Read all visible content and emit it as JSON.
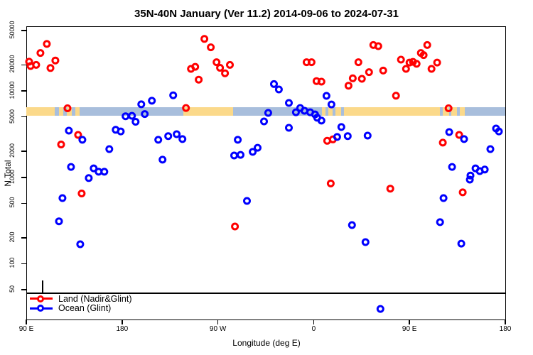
{
  "title": "35N-40N January (Ver 11.2)  2014-09-06 to 2024-07-31",
  "colors": {
    "land": "#FF0000",
    "ocean": "#0000FF",
    "band_land": "#FBD98A",
    "band_ocean": "#A8BEDC",
    "axis": "#000000",
    "background": "#FFFFFF"
  },
  "chart_data": {
    "type": "scatter",
    "title": "35N-40N January (Ver 11.2)  2014-09-06 to 2024-07-31",
    "xlabel": "Longitude (deg E)",
    "ylabel": "N Total",
    "x_axis": {
      "range": [
        90,
        540
      ],
      "ticks": [
        90,
        180,
        270,
        360,
        450,
        540
      ],
      "tick_labels": [
        "90 E",
        "180",
        "90 W",
        "0",
        "90 E",
        "180"
      ],
      "note": "longitude axis starts at 90E and wraps eastward through 180, 90W, 0, 90E to 180"
    },
    "y_axis": {
      "scale": "log10",
      "ticks": [
        50,
        100,
        200,
        500,
        1000,
        2000,
        5000,
        10000,
        20000,
        50000
      ],
      "tick_labels": [
        "50",
        "100",
        "200",
        "500",
        "1000",
        "2000",
        "5000",
        "10000",
        "20000",
        "50000"
      ],
      "top_value": 50000
    },
    "legend": {
      "position": "bottom-left",
      "items": [
        {
          "label": "Land (Nadir&Glint)",
          "color": "#FF0000"
        },
        {
          "label": "Ocean (Glint)",
          "color": "#0000FF"
        }
      ]
    },
    "map_band": {
      "description": "land/ocean strip drawn across plot near N=5500",
      "land_color": "#FBD98A",
      "ocean_color": "#A8BEDC",
      "segments": [
        [
          90,
          117,
          "land"
        ],
        [
          117,
          120.5,
          "ocean"
        ],
        [
          120.5,
          125,
          "land"
        ],
        [
          125,
          128,
          "ocean"
        ],
        [
          128,
          133,
          "land"
        ],
        [
          133,
          136,
          "ocean"
        ],
        [
          136,
          140,
          "land"
        ],
        [
          140,
          237.5,
          "ocean"
        ],
        [
          237.5,
          284,
          "land"
        ],
        [
          284,
          368,
          "ocean"
        ],
        [
          368,
          371,
          "land"
        ],
        [
          371,
          374,
          "ocean"
        ],
        [
          374,
          378,
          "land"
        ],
        [
          378,
          380.5,
          "ocean"
        ],
        [
          380.5,
          386,
          "land"
        ],
        [
          386,
          388.5,
          "ocean"
        ],
        [
          388.5,
          478.5,
          "land"
        ],
        [
          478.5,
          481.5,
          "ocean"
        ],
        [
          481.5,
          487,
          "land"
        ],
        [
          487,
          489.5,
          "ocean"
        ],
        [
          489.5,
          494.5,
          "land"
        ],
        [
          494.5,
          497.5,
          "ocean"
        ],
        [
          497.5,
          502,
          "land"
        ],
        [
          502,
          540,
          "ocean"
        ]
      ]
    },
    "threshold_line_value": 45,
    "series": [
      {
        "name": "Land (Nadir&Glint)",
        "color": "#FF0000",
        "points": [
          [
            109.3,
            35000
          ],
          [
            103.3,
            27500
          ],
          [
            92.7,
            21800
          ],
          [
            99.3,
            20000
          ],
          [
            94,
            19400
          ],
          [
            117.3,
            22500
          ],
          [
            112.7,
            18400
          ],
          [
            128.7,
            6300
          ],
          [
            138.7,
            3100
          ],
          [
            122.7,
            2400
          ],
          [
            142,
            650
          ],
          [
            257.3,
            40000
          ],
          [
            263.3,
            32000
          ],
          [
            268.7,
            21500
          ],
          [
            272,
            18500
          ],
          [
            281.3,
            20000
          ],
          [
            276.7,
            16000
          ],
          [
            244.7,
            18000
          ],
          [
            248.7,
            19000
          ],
          [
            252,
            13500
          ],
          [
            240,
            6350
          ],
          [
            286,
            270
          ],
          [
            353.3,
            21500
          ],
          [
            358,
            21500
          ],
          [
            362.7,
            13000
          ],
          [
            367.3,
            12800
          ],
          [
            392.7,
            11500
          ],
          [
            396.7,
            14000
          ],
          [
            405.3,
            13800
          ],
          [
            402,
            21500
          ],
          [
            412,
            16500
          ],
          [
            416,
            34000
          ],
          [
            420.7,
            33000
          ],
          [
            425.3,
            17200
          ],
          [
            372.7,
            2650
          ],
          [
            378,
            2750
          ],
          [
            376,
            850
          ],
          [
            466.7,
            34000
          ],
          [
            460.7,
            27500
          ],
          [
            463.3,
            26000
          ],
          [
            442,
            23000
          ],
          [
            450,
            21300
          ],
          [
            453.3,
            21700
          ],
          [
            456.7,
            20600
          ],
          [
            446.7,
            18000
          ],
          [
            470.7,
            18000
          ],
          [
            476,
            21300
          ],
          [
            437.3,
            8800
          ],
          [
            486.7,
            6300
          ],
          [
            496.7,
            3100
          ],
          [
            481.3,
            2520
          ],
          [
            432,
            740
          ],
          [
            500,
            670
          ]
        ]
      },
      {
        "name": "Ocean (Glint)",
        "color": "#0000FF",
        "points": [
          [
            198,
            7000
          ],
          [
            201.3,
            5400
          ],
          [
            183.3,
            5100
          ],
          [
            189.3,
            5150
          ],
          [
            192.7,
            4400
          ],
          [
            174,
            3550
          ],
          [
            178.7,
            3400
          ],
          [
            130,
            3470
          ],
          [
            142.7,
            2720
          ],
          [
            168,
            2120
          ],
          [
            132,
            1320
          ],
          [
            153.3,
            1270
          ],
          [
            158,
            1160
          ],
          [
            163.3,
            1160
          ],
          [
            148.7,
            980
          ],
          [
            124,
            575
          ],
          [
            120.7,
            310
          ],
          [
            140.7,
            168
          ],
          [
            228,
            8900
          ],
          [
            208,
            7700
          ],
          [
            214,
            2720
          ],
          [
            223.3,
            3000
          ],
          [
            231.3,
            3160
          ],
          [
            236.7,
            2770
          ],
          [
            218,
            1600
          ],
          [
            288.7,
            2720
          ],
          [
            285.3,
            1790
          ],
          [
            291.3,
            1820
          ],
          [
            302.7,
            1970
          ],
          [
            307.3,
            2200
          ],
          [
            297.3,
            533
          ],
          [
            322.7,
            12000
          ],
          [
            327.3,
            10400
          ],
          [
            336.7,
            7260
          ],
          [
            317.3,
            5570
          ],
          [
            313.3,
            4440
          ],
          [
            343.3,
            5670
          ],
          [
            347.3,
            6350
          ],
          [
            351.3,
            5890
          ],
          [
            356.7,
            5670
          ],
          [
            361.3,
            5350
          ],
          [
            363.3,
            4900
          ],
          [
            367.3,
            4530
          ],
          [
            372,
            8770
          ],
          [
            376.7,
            6980
          ],
          [
            336.7,
            3740
          ],
          [
            386,
            3820
          ],
          [
            382,
            2930
          ],
          [
            392,
            3000
          ],
          [
            410.7,
            3040
          ],
          [
            487.3,
            3340
          ],
          [
            501.3,
            2770
          ],
          [
            531.3,
            3670
          ],
          [
            534,
            3400
          ],
          [
            526,
            2120
          ],
          [
            490,
            1320
          ],
          [
            512,
            1270
          ],
          [
            516,
            1180
          ],
          [
            520.7,
            1230
          ],
          [
            507.3,
            1050
          ],
          [
            506.7,
            940
          ],
          [
            482,
            575
          ],
          [
            478.7,
            303
          ],
          [
            498.7,
            171
          ],
          [
            396,
            280
          ],
          [
            408.7,
            178
          ],
          [
            422.7,
            30
          ]
        ]
      }
    ]
  }
}
